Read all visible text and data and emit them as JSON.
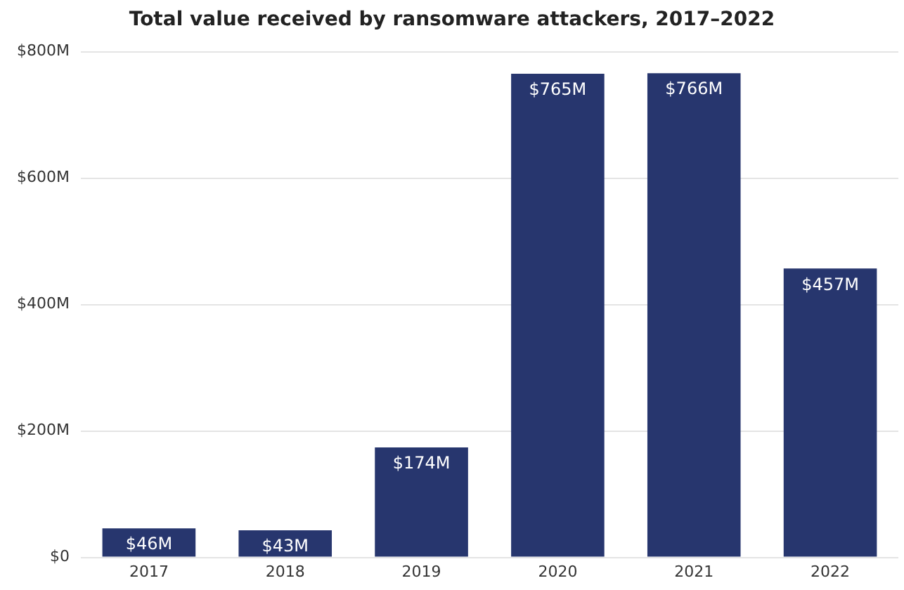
{
  "chart_data": {
    "type": "bar",
    "title": "Total value received by ransomware attackers, 2017–2022",
    "categories": [
      "2017",
      "2018",
      "2019",
      "2020",
      "2021",
      "2022"
    ],
    "values": [
      46,
      43,
      174,
      765,
      766,
      457
    ],
    "value_labels": [
      "$46M",
      "$43M",
      "$174M",
      "$765M",
      "$766M",
      "$457M"
    ],
    "color": "#27366e",
    "ylim": [
      0,
      800
    ],
    "yticks": [
      {
        "value": 0,
        "label": "$0"
      },
      {
        "value": 200,
        "label": "$200M"
      },
      {
        "value": 400,
        "label": "$400M"
      },
      {
        "value": 600,
        "label": "$600M"
      },
      {
        "value": 800,
        "label": "$800M"
      }
    ],
    "grid": "y",
    "legend": false
  }
}
